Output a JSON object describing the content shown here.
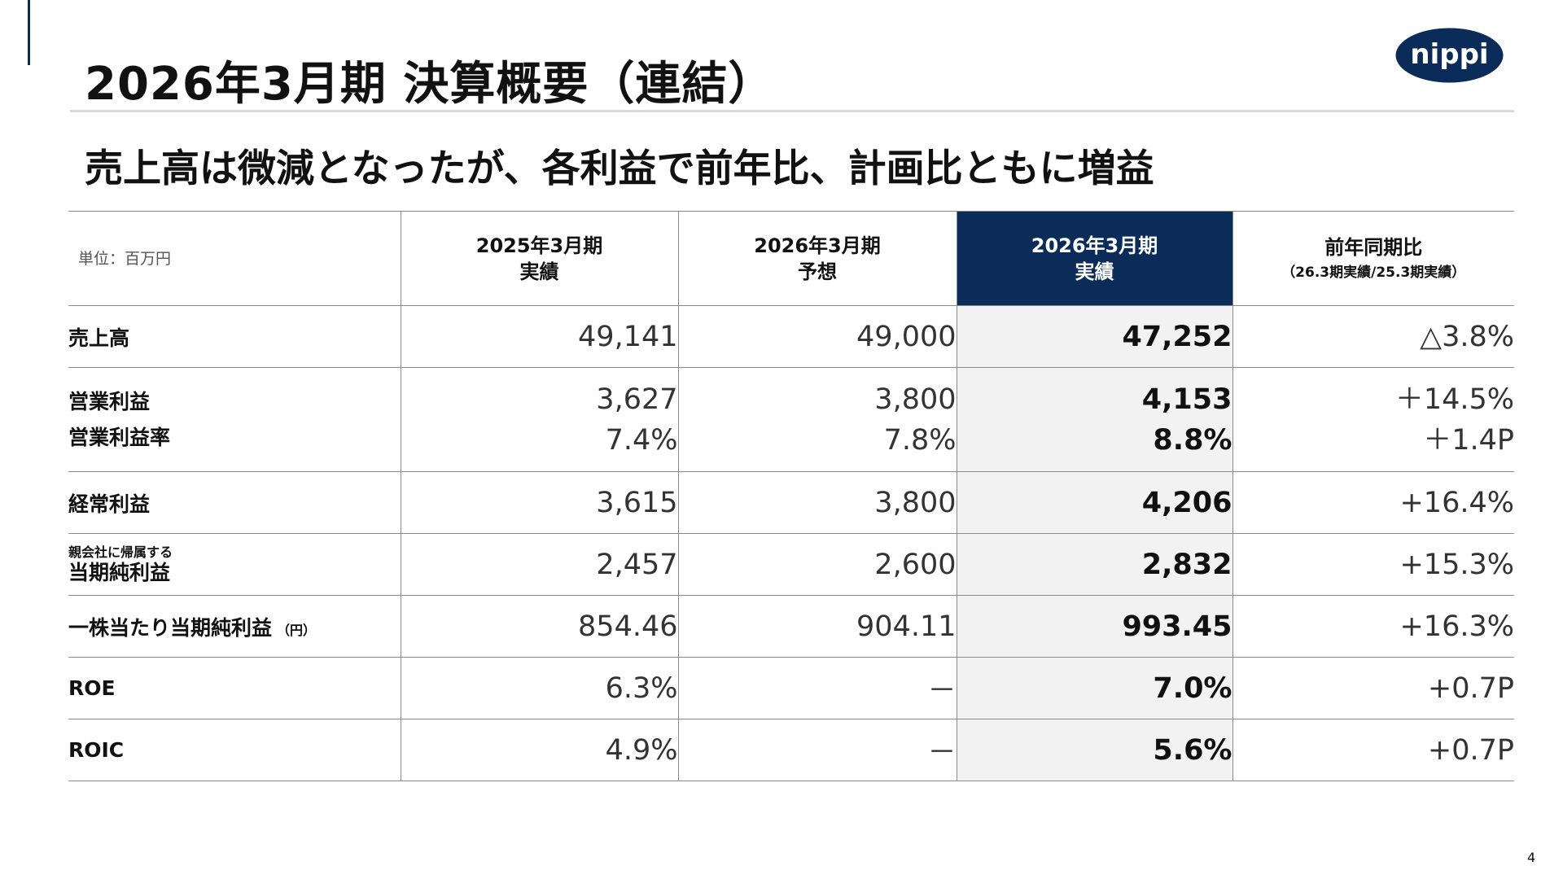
{
  "slide": {
    "title": "2026年3月期 決算概要（連結）",
    "subtitle": "売上高は微減となったが、各利益で前年比、計画比ともに増益",
    "logo_text": "nippi",
    "page_number": "4"
  },
  "table": {
    "unit_label": "単位：百万円",
    "columns": [
      {
        "line1": "2025年3月期",
        "line2": "実績"
      },
      {
        "line1": "2026年3月期",
        "line2": "予想"
      },
      {
        "line1": "2026年3月期",
        "line2": "実績"
      },
      {
        "line1": "前年同期比",
        "line2": "（26.3期実績/25.3期実績）"
      }
    ],
    "rows": [
      {
        "label": "売上高",
        "values": [
          "49,141",
          "49,000",
          "47,252",
          "△3.8%"
        ]
      },
      {
        "label": "営業利益",
        "label2": "営業利益率",
        "values": [
          "3,627",
          "3,800",
          "4,153",
          "＋14.5%"
        ],
        "values2": [
          "7.4%",
          "7.8%",
          "8.8%",
          "＋1.4P"
        ]
      },
      {
        "label": "経常利益",
        "values": [
          "3,615",
          "3,800",
          "4,206",
          "+16.4%"
        ]
      },
      {
        "label_small": "親会社に帰属する",
        "label": "当期純利益",
        "values": [
          "2,457",
          "2,600",
          "2,832",
          "+15.3%"
        ]
      },
      {
        "label": "一株当たり当期純利益",
        "label_suffix": "（円）",
        "values": [
          "854.46",
          "904.11",
          "993.45",
          "+16.3%"
        ]
      },
      {
        "label": "ROE",
        "values": [
          "6.3%",
          "－",
          "7.0%",
          "+0.7P"
        ]
      },
      {
        "label": "ROIC",
        "values": [
          "4.9%",
          "－",
          "5.6%",
          "+0.7P"
        ]
      }
    ]
  },
  "colors": {
    "brand_navy": "#0b2c59",
    "highlight_column_bg": "#f2f2f2",
    "rule_gray": "#d9d9d9"
  }
}
